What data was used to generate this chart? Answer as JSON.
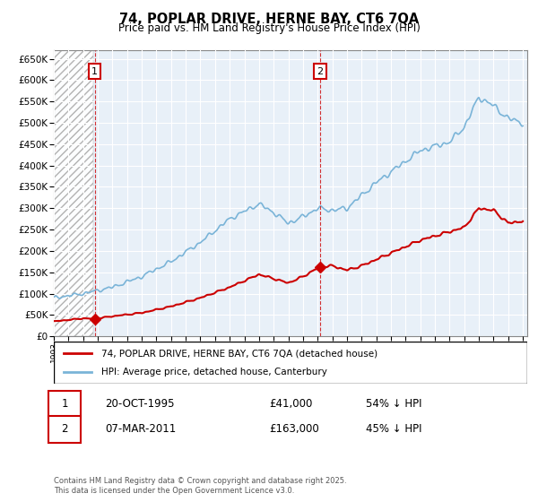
{
  "title": "74, POPLAR DRIVE, HERNE BAY, CT6 7QA",
  "subtitle": "Price paid vs. HM Land Registry's House Price Index (HPI)",
  "legend_line1": "74, POPLAR DRIVE, HERNE BAY, CT6 7QA (detached house)",
  "legend_line2": "HPI: Average price, detached house, Canterbury",
  "transaction1_label": "1",
  "transaction1_date": "20-OCT-1995",
  "transaction1_price": "£41,000",
  "transaction1_pct": "54% ↓ HPI",
  "transaction2_label": "2",
  "transaction2_date": "07-MAR-2011",
  "transaction2_price": "£163,000",
  "transaction2_pct": "45% ↓ HPI",
  "footer": "Contains HM Land Registry data © Crown copyright and database right 2025.\nThis data is licensed under the Open Government Licence v3.0.",
  "hpi_color": "#7ab4d8",
  "price_color": "#cc0000",
  "hatch_color": "#c8d8e8",
  "bg_color": "#ddeeff",
  "ylim_min": 0,
  "ylim_max": 670000,
  "t1_year": 1995.79,
  "t2_year": 2011.17,
  "t1_price": 41000,
  "t2_price": 163000
}
